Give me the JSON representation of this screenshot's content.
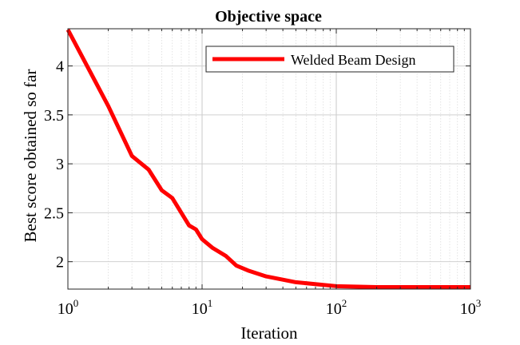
{
  "chart_data": {
    "type": "line",
    "title": "Objective space",
    "xlabel": "Iteration",
    "ylabel": "Best score obtained so far",
    "xscale": "log",
    "xlim": [
      1,
      1000
    ],
    "ylim": [
      1.72,
      4.38
    ],
    "grid": true,
    "legend_placement": "top-right",
    "x_ticks": [
      {
        "base": "10",
        "exp": "0",
        "value": 1
      },
      {
        "base": "10",
        "exp": "1",
        "value": 10
      },
      {
        "base": "10",
        "exp": "2",
        "value": 100
      },
      {
        "base": "10",
        "exp": "3",
        "value": 1000
      }
    ],
    "y_ticks": [
      {
        "label": "2",
        "value": 2
      },
      {
        "label": "2.5",
        "value": 2.5
      },
      {
        "label": "3",
        "value": 3
      },
      {
        "label": "3.5",
        "value": 3.5
      },
      {
        "label": "4",
        "value": 4
      }
    ],
    "series": [
      {
        "name": "Welded Beam Design",
        "color": "#ff0000",
        "x": [
          1,
          2,
          3,
          4,
          5,
          6,
          7,
          8,
          9,
          10,
          12,
          15,
          18,
          22,
          30,
          50,
          100,
          200,
          1000
        ],
        "y": [
          4.37,
          3.59,
          3.08,
          2.94,
          2.73,
          2.65,
          2.5,
          2.37,
          2.33,
          2.23,
          2.14,
          2.06,
          1.96,
          1.91,
          1.85,
          1.79,
          1.75,
          1.74,
          1.74
        ]
      }
    ]
  }
}
